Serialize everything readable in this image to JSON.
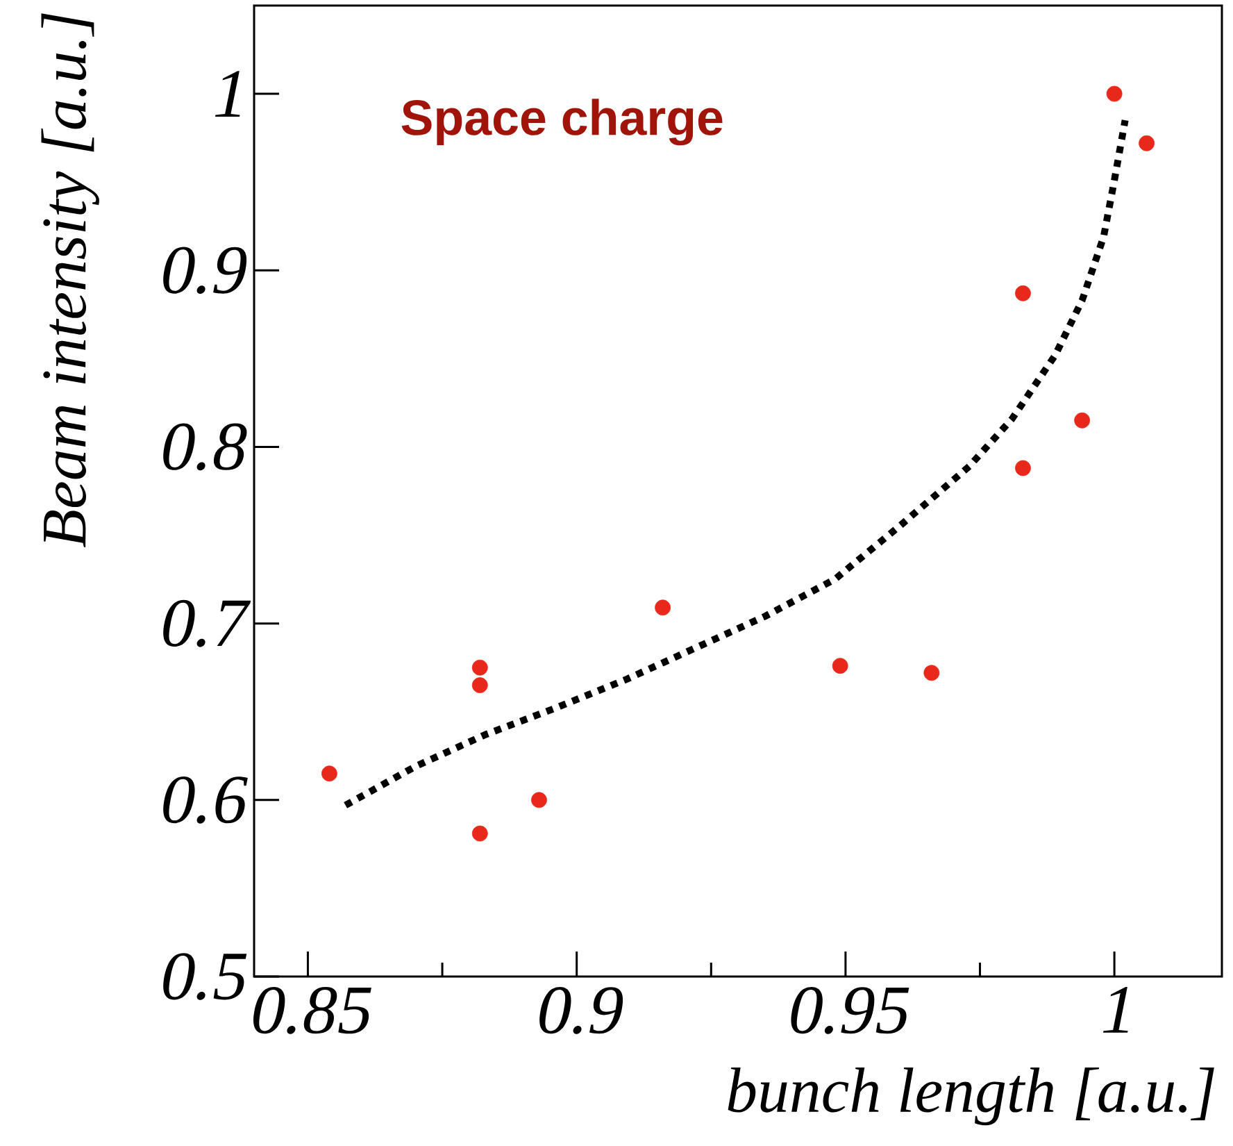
{
  "chart_data": {
    "type": "scatter",
    "xlabel": "bunch length [a.u.]",
    "ylabel": "Beam intensity [a.u.]",
    "annotations": [
      "Space charge"
    ],
    "xlim": [
      0.84,
      1.02
    ],
    "ylim": [
      0.5,
      1.05
    ],
    "xticks": [
      0.85,
      0.9,
      0.95,
      1
    ],
    "yticks": [
      0.5,
      0.6,
      0.7,
      0.8,
      0.9,
      1
    ],
    "grid": false,
    "series": [
      {
        "color": "#e8281a",
        "marker": "circle",
        "x": [
          0.854,
          0.882,
          0.882,
          0.882,
          0.893,
          0.916,
          0.949,
          0.966,
          0.983,
          0.983,
          0.994,
          1.0,
          1.006
        ],
        "values": [
          0.615,
          0.675,
          0.665,
          0.581,
          0.6,
          0.709,
          0.676,
          0.672,
          0.887,
          0.788,
          0.815,
          1.0,
          0.972
        ]
      },
      {
        "type": "line",
        "color": "#000000",
        "line_style": "dotted",
        "marker": "none",
        "x": [
          0.857,
          0.87,
          0.883,
          0.896,
          0.909,
          0.922,
          0.935,
          0.948,
          0.96,
          0.973,
          0.981,
          0.989,
          0.994,
          0.998,
          1.0,
          1.002
        ],
        "values": [
          0.597,
          0.619,
          0.637,
          0.652,
          0.668,
          0.686,
          0.704,
          0.725,
          0.755,
          0.789,
          0.816,
          0.852,
          0.883,
          0.919,
          0.951,
          0.985
        ]
      }
    ]
  }
}
